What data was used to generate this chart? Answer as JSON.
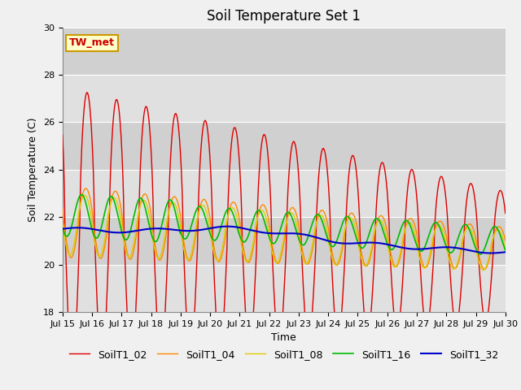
{
  "title": "Soil Temperature Set 1",
  "xlabel": "Time",
  "ylabel": "Soil Temperature (C)",
  "ylim": [
    18,
    30
  ],
  "yticks": [
    18,
    20,
    22,
    24,
    26,
    28,
    30
  ],
  "xtick_labels": [
    "Jul 15",
    "Jul 16",
    "Jul 17",
    "Jul 18",
    "Jul 19",
    "Jul 20",
    "Jul 21",
    "Jul 22",
    "Jul 23",
    "Jul 24",
    "Jul 25",
    "Jul 26",
    "Jul 27",
    "Jul 28",
    "Jul 29",
    "Jul 30"
  ],
  "annotation_text": "TW_met",
  "annotation_color": "#cc0000",
  "annotation_bg": "#ffffcc",
  "annotation_border": "#cc9900",
  "colors": {
    "SoilT1_02": "#dd0000",
    "SoilT1_04": "#ff8800",
    "SoilT1_08": "#ddcc00",
    "SoilT1_16": "#00bb00",
    "SoilT1_32": "#0000cc"
  },
  "band_colors": [
    "#e0e0e0",
    "#d0d0d0"
  ],
  "fig_bg": "#f0f0f0",
  "title_fontsize": 12,
  "axis_fontsize": 9,
  "tick_fontsize": 8,
  "legend_fontsize": 9
}
